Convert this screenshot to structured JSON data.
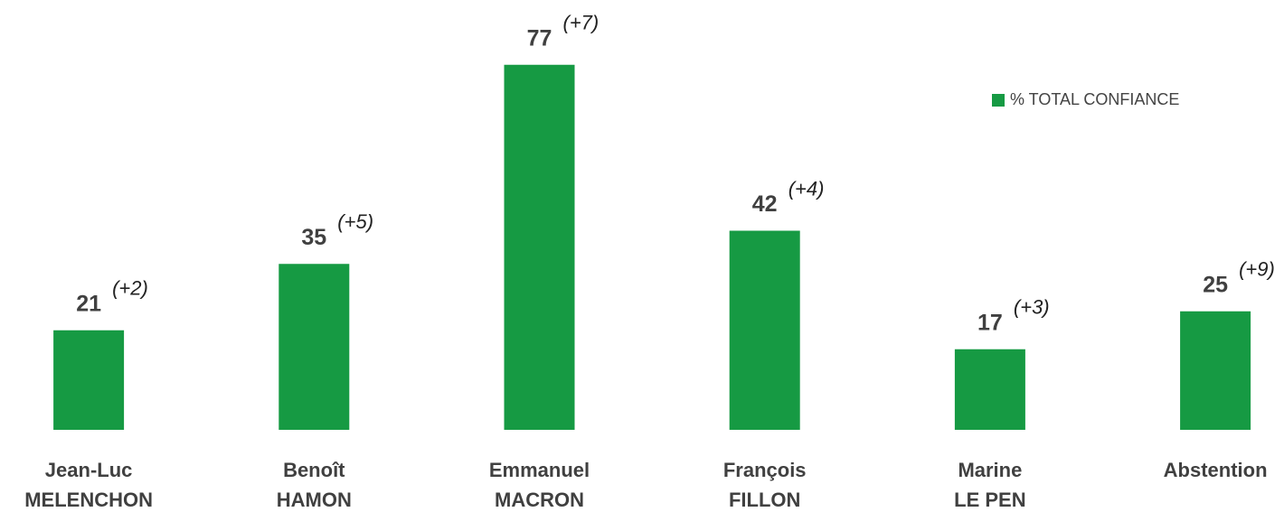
{
  "chart_data": {
    "type": "bar",
    "categories": [
      [
        "Jean-Luc",
        "MELENCHON"
      ],
      [
        "Benoît",
        "HAMON"
      ],
      [
        "Emmanuel",
        "MACRON"
      ],
      [
        "François",
        "FILLON"
      ],
      [
        "Marine",
        "LE PEN"
      ],
      [
        "Abstention"
      ]
    ],
    "series": [
      {
        "name": "% TOTAL CONFIANCE",
        "color": "#169a43",
        "values": [
          21,
          35,
          77,
          42,
          17,
          25
        ]
      }
    ],
    "annotations": [
      "(+2)",
      "(+5)",
      "(+7)",
      "(+4)",
      "(+3)",
      "(+9)"
    ],
    "ylim": [
      0,
      80
    ],
    "legend": "upper right"
  }
}
